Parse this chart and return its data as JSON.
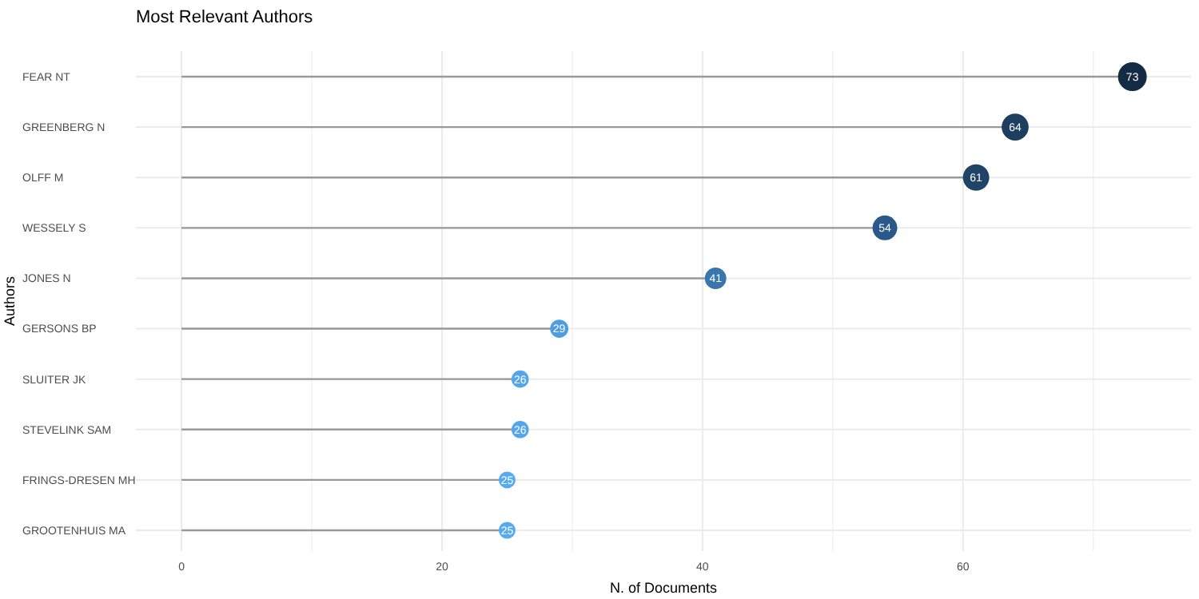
{
  "chart_data": {
    "type": "lollipop",
    "title": "Most Relevant Authors",
    "xlabel": "N. of Documents",
    "ylabel": "Authors",
    "orientation": "horizontal",
    "categories": [
      "FEAR NT",
      "GREENBERG N",
      "OLFF M",
      "WESSELY S",
      "JONES N",
      "GERSONS BP",
      "SLUITER JK",
      "STEVELINK SAM",
      "FRINGS-DRESEN MH",
      "GROOTENHUIS MA"
    ],
    "values": [
      73,
      64,
      61,
      54,
      41,
      29,
      26,
      26,
      25,
      25
    ],
    "sizes": [
      1,
      0.88,
      0.84,
      0.74,
      0.56,
      0.4,
      0.36,
      0.36,
      0.34,
      0.34
    ],
    "colors": [
      "#132b43",
      "#1d3e5f",
      "#1f4467",
      "#28598a",
      "#3976ad",
      "#4e9de0",
      "#53a6ea",
      "#53a6ea",
      "#55aaf0",
      "#55aaf0"
    ],
    "xlim": [
      -3.5,
      77.5
    ],
    "xticks": [
      0,
      {
        "value": 10,
        "label": null
      },
      20,
      {
        "value": 30,
        "label": null
      },
      40,
      {
        "value": 50,
        "label": null
      },
      60,
      {
        "value": 70,
        "label": null
      }
    ],
    "grid": true,
    "data_labels": true
  }
}
